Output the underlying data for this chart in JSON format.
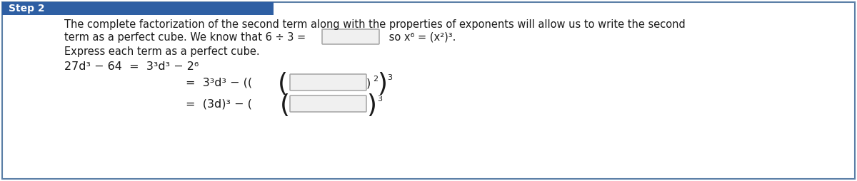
{
  "bg_color": "#ffffff",
  "border_color": "#5b7fa6",
  "header_bg": "#2e5fa3",
  "header_text": "Step 2",
  "header_text_color": "#ffffff",
  "line1": "The complete factorization of the second term along with the properties of exponents will allow us to write the second",
  "line2_pre": "term as a perfect cube. We know that 6 ÷ 3 =",
  "line2_post": " so x⁶ = (x²)³.",
  "line3": "Express each term as a perfect cube.",
  "text_color": "#1a1a1a",
  "font_size_body": 10.5,
  "font_size_header": 10,
  "font_size_eq": 11.5,
  "box_border": "#aaaaaa",
  "box_fill": "#f0f0f0"
}
